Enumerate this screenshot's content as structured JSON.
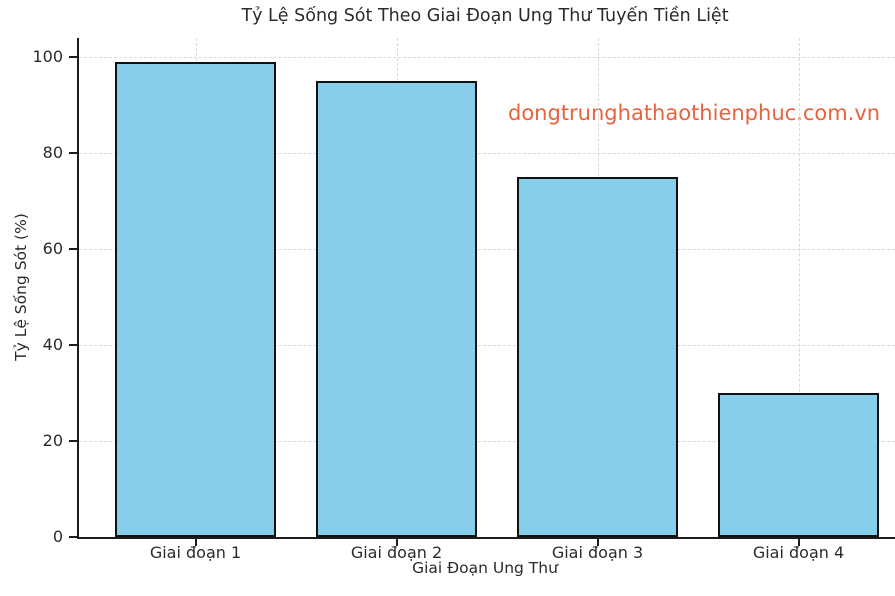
{
  "watermark": {
    "text": "dongtrunghathaothienphuc.com.vn",
    "color": "#e8623f"
  },
  "chart_data": {
    "type": "bar",
    "title": "Tỷ Lệ Sống Sót Theo Giai Đoạn Ung Thư Tuyến Tiền Liệt",
    "xlabel": "Giai Đoạn Ung Thư",
    "ylabel": "Tỷ Lệ Sống Sót (%)",
    "categories": [
      "Giai đoạn 1",
      "Giai đoạn 2",
      "Giai đoạn 3",
      "Giai đoạn 4"
    ],
    "values": [
      99,
      95,
      75,
      30
    ],
    "yticks": [
      0,
      20,
      40,
      60,
      80,
      100
    ],
    "ylim": [
      0,
      104
    ],
    "grid": "dashed, both axes",
    "legend": "none",
    "bar_fill": "#87CEEB",
    "bar_edge": "#111111",
    "grid_color": "#d9d9d9",
    "text_color": "#2b2b2b",
    "background": "#ffffff"
  }
}
